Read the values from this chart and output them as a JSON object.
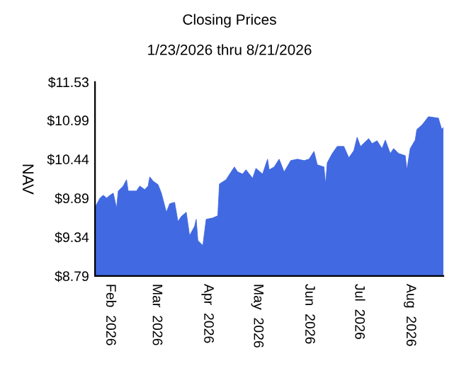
{
  "chart_data": {
    "type": "area",
    "title": "Closing Prices",
    "subtitle": "1/23/2026 thru 8/21/2026",
    "ylabel": "NAV",
    "x": [
      "2026-01-23",
      "2026-01-26",
      "2026-01-28",
      "2026-01-30",
      "2026-02-01",
      "2026-02-03",
      "2026-02-05",
      "2026-02-06",
      "2026-02-09",
      "2026-02-11",
      "2026-02-12",
      "2026-02-17",
      "2026-02-19",
      "2026-02-22",
      "2026-02-24",
      "2026-02-25",
      "2026-02-27",
      "2026-03-02",
      "2026-03-04",
      "2026-03-07",
      "2026-03-09",
      "2026-03-12",
      "2026-03-14",
      "2026-03-16",
      "2026-03-19",
      "2026-03-21",
      "2026-03-24",
      "2026-03-25",
      "2026-03-26",
      "2026-03-29",
      "2026-03-31",
      "2026-04-04",
      "2026-04-07",
      "2026-04-08",
      "2026-04-12",
      "2026-04-17",
      "2026-04-19",
      "2026-04-22",
      "2026-04-24",
      "2026-04-28",
      "2026-04-30",
      "2026-05-04",
      "2026-05-07",
      "2026-05-08",
      "2026-05-11",
      "2026-05-14",
      "2026-05-17",
      "2026-05-21",
      "2026-05-25",
      "2026-05-29",
      "2026-06-01",
      "2026-06-04",
      "2026-06-06",
      "2026-06-10",
      "2026-06-11",
      "2026-06-12",
      "2026-06-15",
      "2026-06-18",
      "2026-06-22",
      "2026-06-25",
      "2026-06-28",
      "2026-06-30",
      "2026-07-02",
      "2026-07-07",
      "2026-07-09",
      "2026-07-12",
      "2026-07-15",
      "2026-07-17",
      "2026-07-20",
      "2026-07-22",
      "2026-07-25",
      "2026-07-29",
      "2026-07-30",
      "2026-08-01",
      "2026-08-04",
      "2026-08-05",
      "2026-08-08",
      "2026-08-12",
      "2026-08-15",
      "2026-08-18",
      "2026-08-20",
      "2026-08-21"
    ],
    "series": [
      {
        "color": "#4169e1",
        "values": [
          9.76,
          9.89,
          9.93,
          9.89,
          9.93,
          9.96,
          9.75,
          9.99,
          10.06,
          10.15,
          9.99,
          9.99,
          10.06,
          10.01,
          10.06,
          10.19,
          10.13,
          10.08,
          9.96,
          9.69,
          9.81,
          9.83,
          9.56,
          9.63,
          9.69,
          9.36,
          9.49,
          9.59,
          9.29,
          9.22,
          9.59,
          9.61,
          9.64,
          10.09,
          10.15,
          10.33,
          10.26,
          10.23,
          10.29,
          10.17,
          10.31,
          10.23,
          10.44,
          10.29,
          10.33,
          10.44,
          10.26,
          10.42,
          10.44,
          10.42,
          10.44,
          10.55,
          10.36,
          10.33,
          10.09,
          10.39,
          10.52,
          10.62,
          10.62,
          10.46,
          10.56,
          10.75,
          10.62,
          10.73,
          10.66,
          10.7,
          10.59,
          10.71,
          10.52,
          10.59,
          10.52,
          10.49,
          10.29,
          10.59,
          10.71,
          10.86,
          10.92,
          11.04,
          11.03,
          11.02,
          10.86,
          10.89
        ]
      }
    ],
    "xlim": [
      "2026-01-23",
      "2026-08-21"
    ],
    "xticks": [
      {
        "value": "2026-02-01",
        "label": "Feb 2026"
      },
      {
        "value": "2026-03-01",
        "label": "Mar 2026"
      },
      {
        "value": "2026-04-01",
        "label": "Apr 2026"
      },
      {
        "value": "2026-05-01",
        "label": "May 2026"
      },
      {
        "value": "2026-06-01",
        "label": "Jun 2026"
      },
      {
        "value": "2026-07-01",
        "label": "Jul 2026"
      },
      {
        "value": "2026-08-01",
        "label": "Aug 2026"
      }
    ],
    "ylim": [
      8.79,
      11.53
    ],
    "yticks": [
      {
        "value": 8.79,
        "label": "$8.79"
      },
      {
        "value": 9.34,
        "label": "$9.34"
      },
      {
        "value": 9.89,
        "label": "$9.89"
      },
      {
        "value": 10.44,
        "label": "$10.44"
      },
      {
        "value": 10.99,
        "label": "$10.99"
      },
      {
        "value": 11.53,
        "label": "$11.53"
      }
    ],
    "grid": false,
    "legend": false
  }
}
